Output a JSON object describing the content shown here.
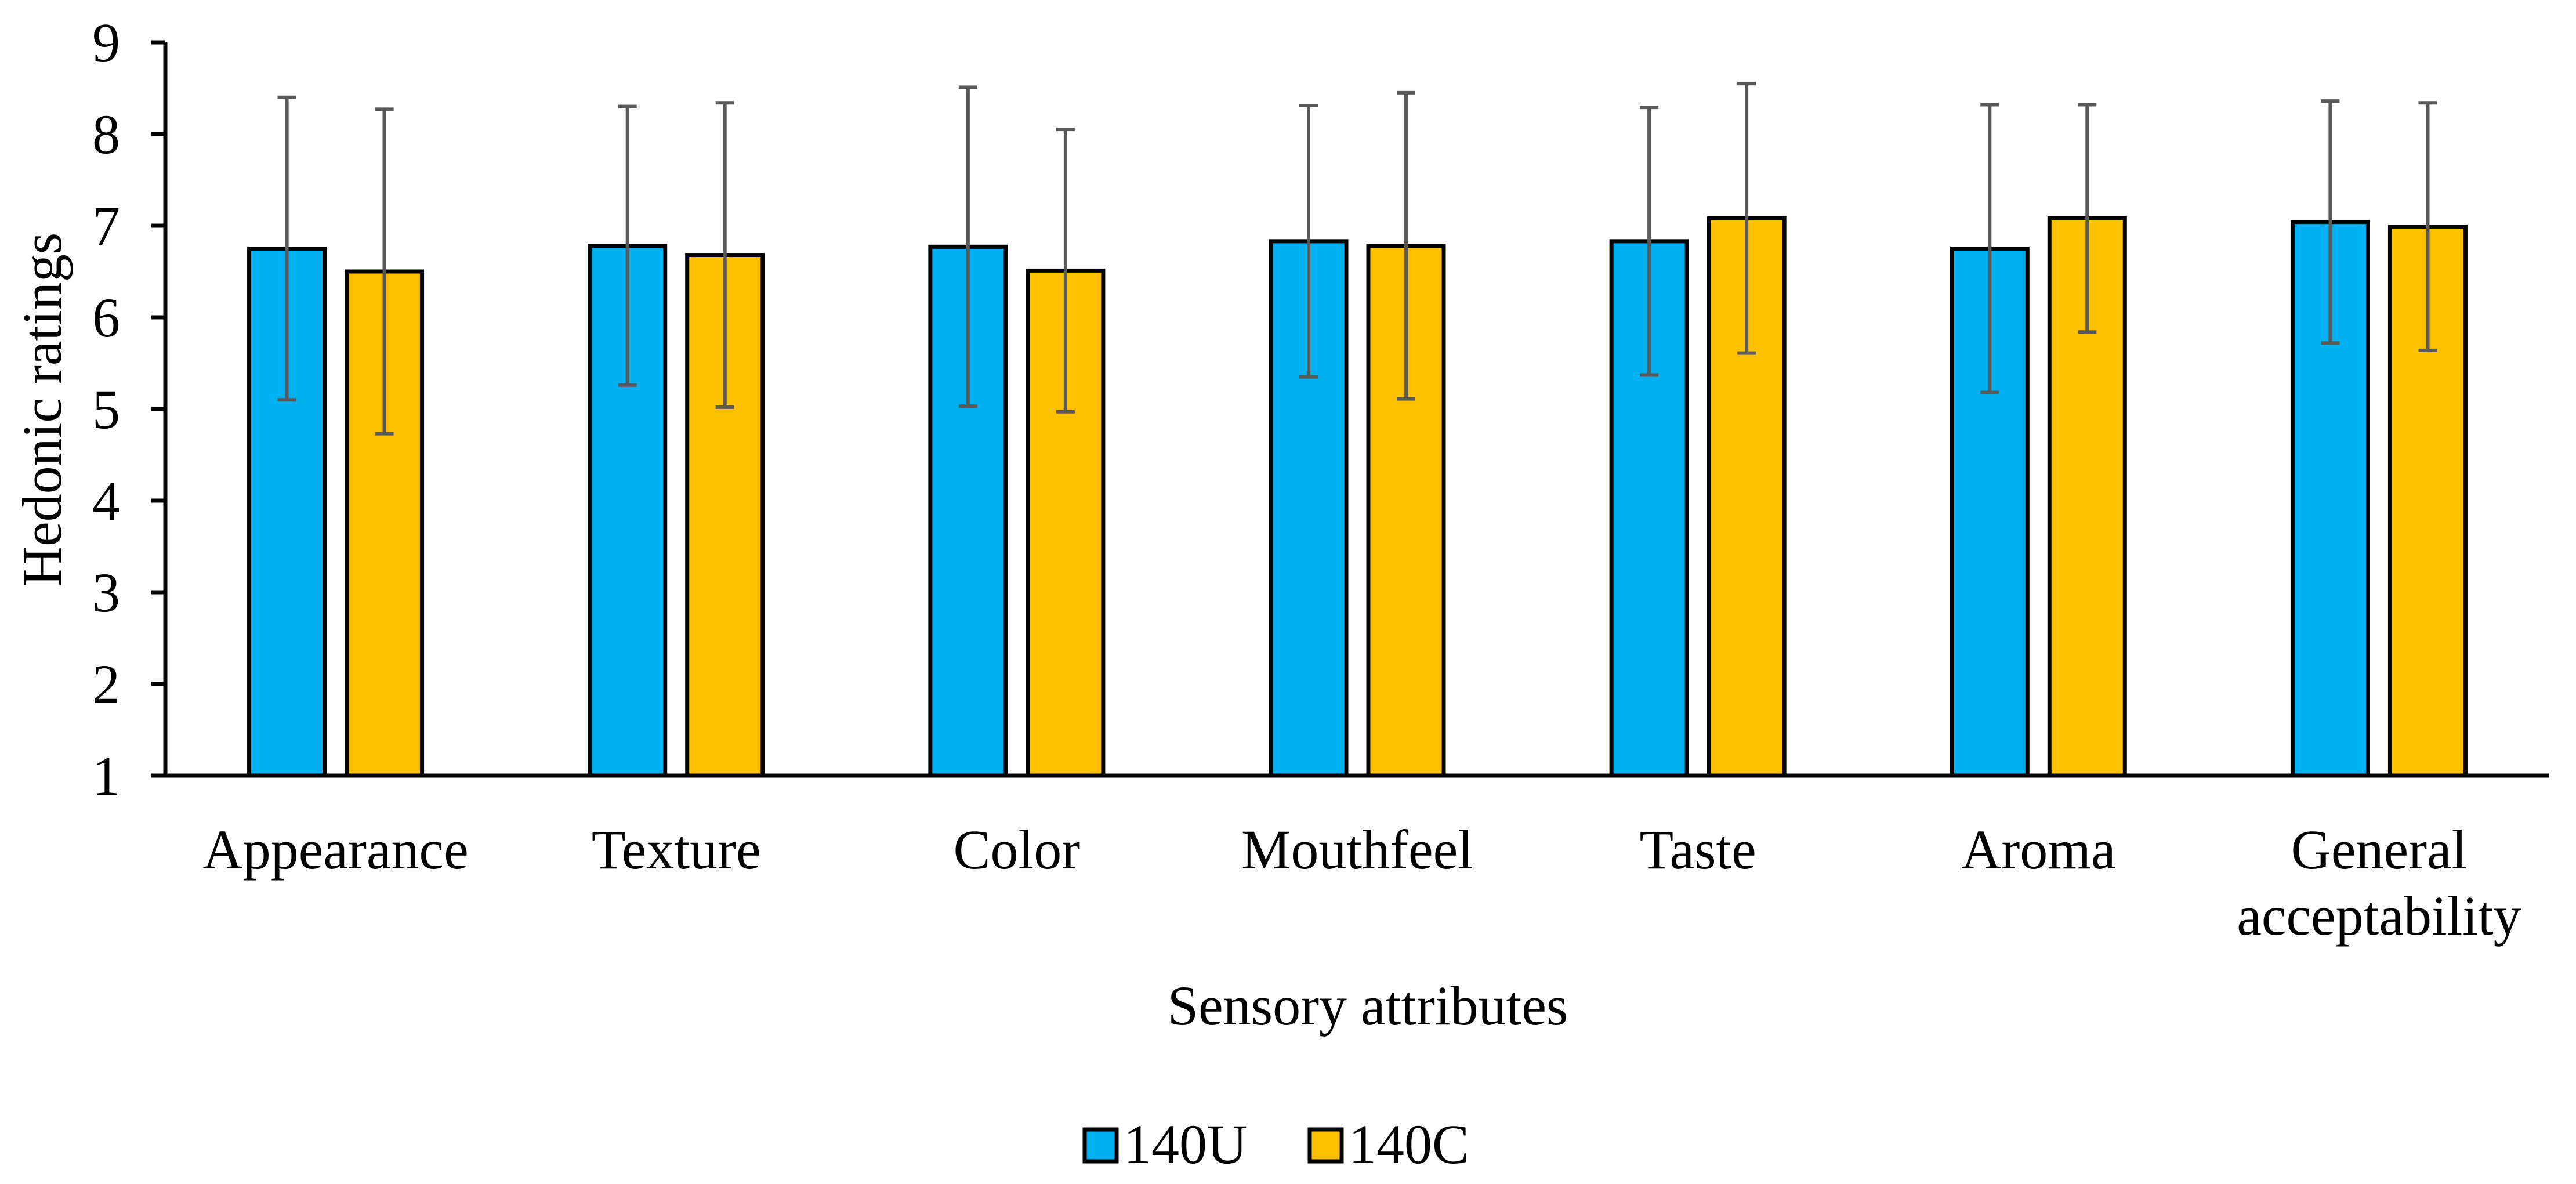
{
  "chart_data": {
    "type": "bar",
    "title": "",
    "xlabel": "Sensory attributes",
    "ylabel": "Hedonic ratings",
    "ylim": [
      1,
      9
    ],
    "yticks": [
      1,
      2,
      3,
      4,
      5,
      6,
      7,
      8,
      9
    ],
    "grid": false,
    "legend_position": "bottom-center",
    "categories": [
      [
        "Appearance"
      ],
      [
        "Texture"
      ],
      [
        "Color"
      ],
      [
        "Mouthfeel"
      ],
      [
        "Taste"
      ],
      [
        "Aroma"
      ],
      [
        "General",
        "acceptability"
      ]
    ],
    "series": [
      {
        "name": "140U",
        "color": "#00B0F0",
        "values": [
          6.75,
          6.78,
          6.77,
          6.83,
          6.83,
          6.75,
          7.04
        ],
        "errors": [
          1.65,
          1.52,
          1.74,
          1.48,
          1.46,
          1.57,
          1.32
        ]
      },
      {
        "name": "140C",
        "color": "#FFC000",
        "values": [
          6.5,
          6.68,
          6.51,
          6.78,
          7.08,
          7.08,
          6.99
        ],
        "errors": [
          1.77,
          1.66,
          1.54,
          1.67,
          1.47,
          1.24,
          1.35
        ]
      }
    ]
  }
}
